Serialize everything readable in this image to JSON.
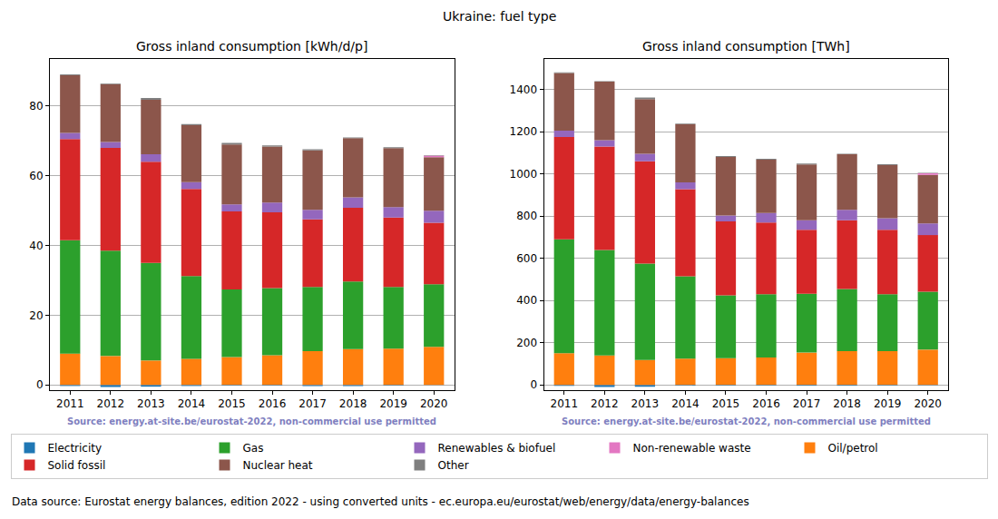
{
  "title": "Ukraine: fuel type",
  "footnote": "Data source: Eurostat energy balances, edition 2022 - using converted units - ec.europa.eu/eurostat/web/energy/data/energy-balances",
  "legend": "bottom",
  "chart_data": [
    {
      "type": "bar",
      "stacked": true,
      "grid": true,
      "title": "Gross inland consumption [kWh/d/p]",
      "annotations": [
        "Source: energy.at-site.be/eurostat-2022, non-commercial use permitted"
      ],
      "categories": [
        "2011",
        "2012",
        "2013",
        "2014",
        "2015",
        "2016",
        "2017",
        "2018",
        "2019",
        "2020"
      ],
      "ylim": [
        -1.5,
        93.5
      ],
      "yticks": [
        0,
        20,
        40,
        60,
        80
      ],
      "series": [
        {
          "name": "Electricity",
          "color": "#1f77b4",
          "values": [
            -0.3,
            -0.6,
            -0.5,
            -0.3,
            -0.2,
            -0.2,
            -0.3,
            -0.3,
            -0.2,
            -0.1
          ]
        },
        {
          "name": "Oil/petrol",
          "color": "#ff7f0e",
          "values": [
            9.0,
            8.3,
            7.0,
            7.5,
            8.0,
            8.5,
            9.7,
            10.3,
            10.4,
            10.9
          ]
        },
        {
          "name": "Gas",
          "color": "#2ca02c",
          "values": [
            32.5,
            30.2,
            28.0,
            23.7,
            19.4,
            19.3,
            18.4,
            19.4,
            17.7,
            18.0
          ]
        },
        {
          "name": "Solid fossil",
          "color": "#d62728",
          "values": [
            29.0,
            29.5,
            29.0,
            25.0,
            22.4,
            21.7,
            19.4,
            21.1,
            19.9,
            17.6
          ]
        },
        {
          "name": "Renewables & biofuel",
          "color": "#9467bd",
          "values": [
            1.8,
            1.7,
            2.2,
            2.0,
            2.0,
            2.8,
            2.7,
            3.0,
            3.0,
            3.5
          ]
        },
        {
          "name": "Nuclear heat",
          "color": "#8c564b",
          "values": [
            16.5,
            16.6,
            15.6,
            16.3,
            17.2,
            16.1,
            17.1,
            17.0,
            16.9,
            15.3
          ]
        },
        {
          "name": "Non-renewable waste",
          "color": "#e377c2",
          "values": [
            0,
            0,
            0,
            0,
            0,
            0,
            0,
            0,
            0,
            0.5
          ]
        },
        {
          "name": "Other",
          "color": "#7f7f7f",
          "values": [
            0.3,
            0.2,
            0.5,
            0.3,
            0.4,
            0.3,
            0.3,
            0.2,
            0.3,
            0.1
          ]
        }
      ]
    },
    {
      "type": "bar",
      "stacked": true,
      "grid": true,
      "title": "Gross inland consumption [TWh]",
      "annotations": [
        "Source: energy.at-site.be/eurostat-2022, non-commercial use permitted"
      ],
      "categories": [
        "2011",
        "2012",
        "2013",
        "2014",
        "2015",
        "2016",
        "2017",
        "2018",
        "2019",
        "2020"
      ],
      "ylim": [
        -25,
        1545
      ],
      "yticks": [
        0,
        200,
        400,
        600,
        800,
        1000,
        1200,
        1400
      ],
      "series": [
        {
          "name": "Electricity",
          "color": "#1f77b4",
          "values": [
            -5,
            -10,
            -9,
            -4,
            -3,
            -3,
            -4,
            -4,
            -3,
            -2
          ]
        },
        {
          "name": "Oil/petrol",
          "color": "#ff7f0e",
          "values": [
            150,
            140,
            118,
            125,
            127,
            130,
            153,
            160,
            160,
            167
          ]
        },
        {
          "name": "Gas",
          "color": "#2ca02c",
          "values": [
            540,
            500,
            457,
            390,
            298,
            300,
            279,
            295,
            270,
            275
          ]
        },
        {
          "name": "Solid fossil",
          "color": "#d62728",
          "values": [
            485,
            490,
            485,
            413,
            350,
            340,
            303,
            325,
            305,
            268
          ]
        },
        {
          "name": "Renewables & biofuel",
          "color": "#9467bd",
          "values": [
            30,
            30,
            35,
            32,
            28,
            45,
            45,
            50,
            55,
            55
          ]
        },
        {
          "name": "Nuclear heat",
          "color": "#8c564b",
          "values": [
            273,
            277,
            260,
            275,
            277,
            253,
            265,
            263,
            252,
            230
          ]
        },
        {
          "name": "Non-renewable waste",
          "color": "#e377c2",
          "values": [
            0,
            0,
            0,
            0,
            0,
            0,
            0,
            0,
            0,
            8
          ]
        },
        {
          "name": "Other",
          "color": "#7f7f7f",
          "values": [
            4,
            3,
            7,
            4,
            5,
            4,
            4,
            3,
            4,
            2
          ]
        }
      ]
    }
  ]
}
